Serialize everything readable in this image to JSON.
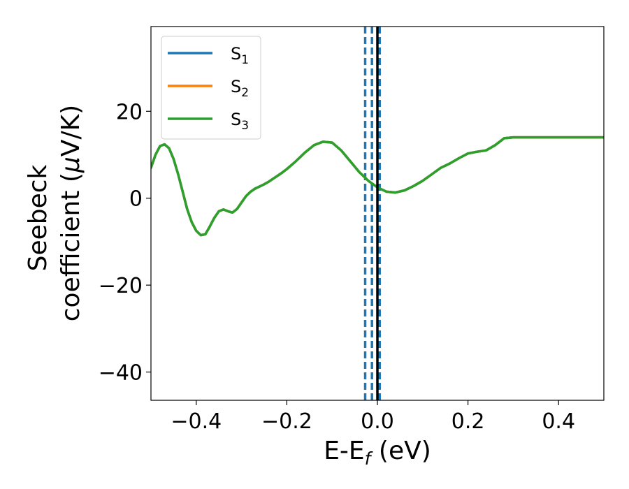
{
  "chart_data": {
    "type": "line",
    "xlabel_main": "E-E",
    "xlabel_sub": "f",
    "xlabel_unit": " (eV)",
    "ylabel_line1": "Seebeck",
    "ylabel_line2_text": "coefficient  (",
    "ylabel_line2_mu": "μ",
    "ylabel_line2_unit": "V/K)",
    "xlim": [
      -0.5,
      0.5
    ],
    "ylim": [
      -46.5,
      39.5
    ],
    "xticks": [
      -0.4,
      -0.2,
      0.0,
      0.2,
      0.4
    ],
    "xtick_labels": [
      "−0.4",
      "−0.2",
      "0.0",
      "0.2",
      "0.4"
    ],
    "yticks": [
      -40,
      -20,
      0,
      20
    ],
    "ytick_labels": [
      "−40",
      "−20",
      "0",
      "20"
    ],
    "grid": false,
    "legend_position": "upper-left",
    "series": [
      {
        "name": "S",
        "subscript": "1",
        "color": "#1f77b4"
      },
      {
        "name": "S",
        "subscript": "2",
        "color": "#ff7f0e"
      },
      {
        "name": "S",
        "subscript": "3",
        "color": "#2ca02c"
      }
    ],
    "x": [
      -0.5,
      -0.49,
      -0.48,
      -0.47,
      -0.46,
      -0.45,
      -0.44,
      -0.43,
      -0.42,
      -0.41,
      -0.4,
      -0.39,
      -0.38,
      -0.37,
      -0.36,
      -0.35,
      -0.34,
      -0.33,
      -0.32,
      -0.31,
      -0.3,
      -0.29,
      -0.28,
      -0.27,
      -0.26,
      -0.25,
      -0.24,
      -0.23,
      -0.22,
      -0.21,
      -0.2,
      -0.18,
      -0.16,
      -0.14,
      -0.12,
      -0.1,
      -0.08,
      -0.06,
      -0.04,
      -0.02,
      0.0,
      0.02,
      0.04,
      0.06,
      0.08,
      0.1,
      0.12,
      0.14,
      0.16,
      0.18,
      0.2,
      0.22,
      0.24,
      0.26,
      0.28,
      0.3,
      0.32,
      0.34,
      0.36,
      0.38,
      0.4,
      0.42,
      0.44,
      0.46,
      0.48,
      0.5
    ],
    "y": [
      7.0,
      10.0,
      12.0,
      12.4,
      11.5,
      9.0,
      5.5,
      1.5,
      -2.5,
      -5.5,
      -7.5,
      -8.5,
      -8.3,
      -6.5,
      -4.5,
      -3.0,
      -2.6,
      -3.0,
      -3.3,
      -2.5,
      -1.0,
      0.5,
      1.5,
      2.2,
      2.7,
      3.2,
      3.8,
      4.5,
      5.2,
      5.9,
      6.7,
      8.5,
      10.5,
      12.2,
      13.0,
      12.8,
      11.0,
      8.5,
      6.0,
      4.0,
      2.5,
      1.5,
      1.3,
      1.8,
      2.8,
      4.0,
      5.5,
      7.0,
      8.0,
      9.2,
      10.3,
      10.7,
      11.0,
      12.2,
      13.8,
      14.0,
      14.0,
      14.0,
      14.0,
      14.0,
      14.0,
      14.0,
      14.0,
      14.0,
      14.0,
      14.0
    ],
    "vlines": [
      {
        "x": -0.027,
        "style": "dashed",
        "color": "#1f77b4"
      },
      {
        "x": -0.012,
        "style": "dashed",
        "color": "#1f77b4"
      },
      {
        "x": 0.005,
        "style": "dashed",
        "color": "#1f77b4"
      },
      {
        "x": 0.0,
        "style": "solid",
        "color": "#000000"
      }
    ]
  }
}
